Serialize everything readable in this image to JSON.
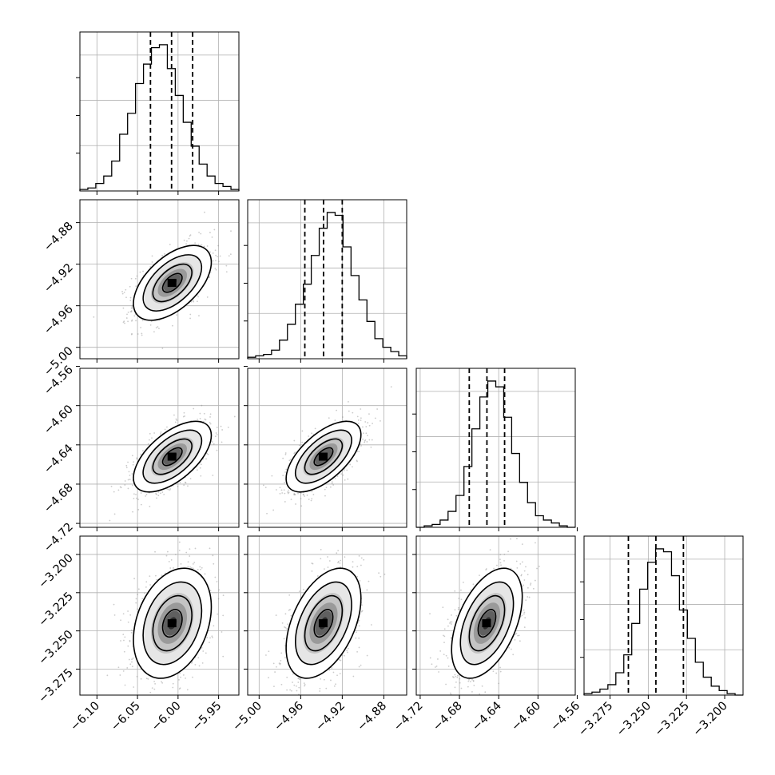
{
  "chart_data": {
    "type": "corner",
    "title": "",
    "params": [
      {
        "ticks": [
          -6.1,
          -6.05,
          -6.0,
          -5.95
        ],
        "tick_labels": [
          "−6.10",
          "−6.05",
          "−6.00",
          "−5.95"
        ],
        "range": [
          -6.121,
          -5.925
        ],
        "quantiles": [
          -6.034,
          -6.008,
          -5.982
        ]
      },
      {
        "ticks": [
          -5.0,
          -4.96,
          -4.92,
          -4.88
        ],
        "tick_labels": [
          "−5.00",
          "−4.96",
          "−4.92",
          "−4.88"
        ],
        "range": [
          -5.011,
          -4.858
        ],
        "quantiles": [
          -4.956,
          -4.938,
          -4.92
        ]
      },
      {
        "ticks": [
          -4.72,
          -4.68,
          -4.64,
          -4.6,
          -4.56
        ],
        "tick_labels": [
          "−4.72",
          "−4.68",
          "−4.64",
          "−4.60",
          "−4.56"
        ],
        "range": [
          -4.724,
          -4.562
        ],
        "quantiles": [
          -4.67,
          -4.652,
          -4.634
        ]
      },
      {
        "ticks": [
          -3.275,
          -3.25,
          -3.225,
          -3.2
        ],
        "tick_labels": [
          "−3.275",
          "−3.250",
          "−3.225",
          "−3.200"
        ],
        "range": [
          -3.292,
          -3.188
        ],
        "quantiles": [
          -3.263,
          -3.245,
          -3.227
        ]
      }
    ],
    "histograms": [
      {
        "counts": [
          1,
          2,
          5,
          10,
          20,
          38,
          52,
          72,
          85,
          96,
          98,
          82,
          64,
          46,
          30,
          18,
          10,
          5,
          3,
          1
        ]
      },
      {
        "counts": [
          1,
          2,
          3,
          6,
          13,
          24,
          38,
          52,
          72,
          91,
          102,
          100,
          78,
          58,
          41,
          26,
          14,
          8,
          5,
          2
        ]
      },
      {
        "counts": [
          0,
          1,
          2,
          5,
          11,
          22,
          42,
          68,
          90,
          101,
          97,
          76,
          51,
          31,
          17,
          8,
          5,
          3,
          1,
          0
        ]
      },
      {
        "counts": [
          1,
          2,
          4,
          7,
          15,
          27,
          48,
          71,
          89,
          98,
          96,
          80,
          57,
          38,
          22,
          12,
          6,
          3,
          1,
          0
        ]
      }
    ],
    "pairs": [
      {
        "row": 1,
        "col": 0,
        "mean": [
          -6.007,
          -4.938
        ],
        "sd": [
          0.024,
          0.018
        ],
        "corr": 0.55
      },
      {
        "row": 2,
        "col": 0,
        "mean": [
          -6.007,
          -4.652
        ],
        "sd": [
          0.024,
          0.018
        ],
        "corr": 0.6
      },
      {
        "row": 2,
        "col": 1,
        "mean": [
          -4.938,
          -4.652
        ],
        "sd": [
          0.018,
          0.018
        ],
        "corr": 0.62
      },
      {
        "row": 3,
        "col": 0,
        "mean": [
          -6.007,
          -3.245
        ],
        "sd": [
          0.024,
          0.018
        ],
        "corr": 0.3
      },
      {
        "row": 3,
        "col": 1,
        "mean": [
          -4.938,
          -3.245
        ],
        "sd": [
          0.018,
          0.018
        ],
        "corr": 0.45
      },
      {
        "row": 3,
        "col": 2,
        "mean": [
          -4.652,
          -3.245
        ],
        "sd": [
          0.018,
          0.018
        ],
        "corr": 0.48
      }
    ],
    "contour_levels_sigma": [
      0.5,
      1.0,
      1.5,
      2.0
    ],
    "grid": true,
    "colors": {
      "line": "#000000",
      "grid": "#b0b0b0",
      "scatter": "#8c8c8c",
      "density": "#000000"
    }
  }
}
